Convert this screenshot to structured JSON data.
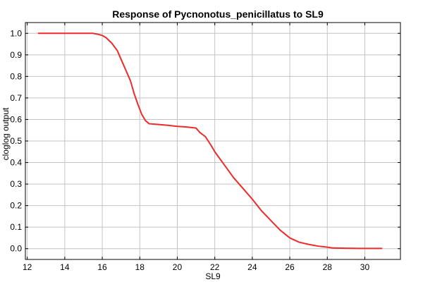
{
  "chart_data": {
    "type": "line",
    "title": "Response of Pycnonotus_penicillatus to SL9",
    "xlabel": "SL9",
    "ylabel": "cloglog output",
    "xlim": [
      11.9,
      31.9
    ],
    "ylim": [
      -0.05,
      1.05
    ],
    "xticks": [
      12,
      14,
      16,
      18,
      20,
      22,
      24,
      26,
      28,
      30
    ],
    "yticks": [
      0.0,
      0.1,
      0.2,
      0.3,
      0.4,
      0.5,
      0.6,
      0.7,
      0.8,
      0.9,
      1.0
    ],
    "xtick_labels": [
      "12",
      "14",
      "16",
      "18",
      "20",
      "22",
      "24",
      "26",
      "28",
      "30"
    ],
    "ytick_labels": [
      "0.0",
      "0.1",
      "0.2",
      "0.3",
      "0.4",
      "0.5",
      "0.6",
      "0.7",
      "0.8",
      "0.9",
      "1.0"
    ],
    "grid": true,
    "series": [
      {
        "color": "#ee2a2a",
        "x": [
          12.6,
          15.5,
          15.8,
          16.0,
          16.2,
          16.5,
          16.8,
          17.0,
          17.2,
          17.5,
          17.7,
          17.9,
          18.1,
          18.3,
          18.5,
          18.8,
          19.5,
          20.0,
          20.5,
          21.0,
          21.2,
          21.5,
          21.8,
          22.0,
          22.5,
          23.0,
          23.5,
          24.0,
          24.5,
          25.0,
          25.5,
          26.0,
          26.5,
          27.0,
          27.5,
          28.0,
          28.3,
          29.0,
          30.0,
          30.9
        ],
        "y": [
          1.0,
          1.0,
          0.995,
          0.99,
          0.98,
          0.955,
          0.92,
          0.88,
          0.84,
          0.78,
          0.72,
          0.67,
          0.625,
          0.595,
          0.58,
          0.578,
          0.573,
          0.568,
          0.565,
          0.56,
          0.54,
          0.52,
          0.48,
          0.45,
          0.39,
          0.33,
          0.28,
          0.23,
          0.175,
          0.13,
          0.085,
          0.05,
          0.03,
          0.02,
          0.012,
          0.007,
          0.003,
          0.002,
          0.001,
          0.001
        ]
      }
    ]
  }
}
